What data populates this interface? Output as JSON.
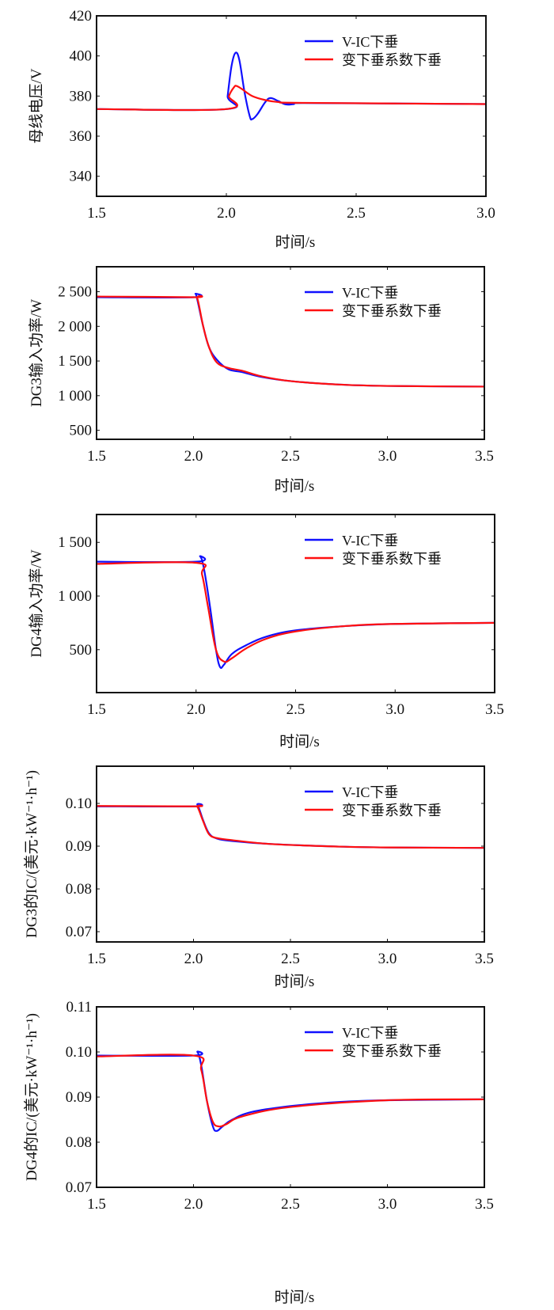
{
  "colors": {
    "vic": "#1010ff",
    "var": "#ff1010"
  },
  "chart_data": [
    {
      "type": "line",
      "ylabel": "母线电压/V",
      "xlabel": "时间/s",
      "xlim": [
        1.5,
        3.0
      ],
      "ylim": [
        330,
        420
      ],
      "xticks": [
        1.5,
        2.0,
        2.5,
        3.0
      ],
      "xtick_labels": [
        "1.5",
        "2.0",
        "2.5",
        "3.0"
      ],
      "yticks": [
        340,
        360,
        380,
        400,
        420
      ],
      "ytick_labels": [
        "340",
        "360",
        "380",
        "400",
        "420"
      ],
      "legend": "top-right",
      "series": [
        {
          "name": "V-IC下垂",
          "color": "#1010ff",
          "x": [
            1.5,
            2.0,
            2.005,
            2.02,
            2.035,
            2.05,
            2.07,
            2.09,
            2.1,
            2.12,
            2.15,
            2.17,
            2.2,
            2.23,
            2.26,
            2.3,
            3.0
          ],
          "y": [
            373.5,
            373.5,
            380,
            395,
            401.5,
            398,
            382,
            370,
            368.5,
            371,
            377,
            379,
            377.5,
            375.8,
            376,
            376.5,
            376
          ]
        },
        {
          "name": "变下垂系数下垂",
          "color": "#ff1010",
          "x": [
            1.5,
            2.0,
            2.01,
            2.03,
            2.04,
            2.06,
            2.1,
            2.15,
            2.2,
            2.3,
            3.0
          ],
          "y": [
            373.5,
            373.5,
            380,
            384.5,
            385,
            383.5,
            380,
            378,
            377,
            376.6,
            376
          ]
        }
      ]
    },
    {
      "type": "line",
      "ylabel": "DG3输入功率/W",
      "xlabel": "时间/s",
      "xlim": [
        1.5,
        3.5
      ],
      "ylim": [
        370,
        2860
      ],
      "xticks": [
        1.5,
        2.0,
        2.5,
        3.0,
        3.5
      ],
      "xtick_labels": [
        "1.5",
        "2.0",
        "2.5",
        "3.0",
        "3.5"
      ],
      "yticks": [
        500,
        1000,
        1500,
        2000,
        2500
      ],
      "ytick_labels": [
        "500",
        "1 000",
        "1 500",
        "2 000",
        "2 500"
      ],
      "legend": "top-right",
      "series": [
        {
          "name": "V-IC下垂",
          "color": "#1010ff",
          "x": [
            1.5,
            2.0,
            2.01,
            2.02,
            2.05,
            2.08,
            2.12,
            2.18,
            2.25,
            2.35,
            2.5,
            2.75,
            3.0,
            3.5
          ],
          "y": [
            2420,
            2420,
            2470,
            2380,
            2000,
            1700,
            1520,
            1380,
            1340,
            1270,
            1210,
            1160,
            1140,
            1130
          ]
        },
        {
          "name": "变下垂系数下垂",
          "color": "#ff1010",
          "x": [
            1.5,
            2.0,
            2.02,
            2.05,
            2.08,
            2.12,
            2.18,
            2.25,
            2.35,
            2.5,
            2.75,
            3.0,
            3.5
          ],
          "y": [
            2430,
            2420,
            2400,
            2000,
            1700,
            1480,
            1400,
            1360,
            1280,
            1210,
            1160,
            1140,
            1130
          ]
        }
      ]
    },
    {
      "type": "line",
      "ylabel": "DG4输入功率/W",
      "xlabel": "时间/s",
      "xlim": [
        1.5,
        3.5
      ],
      "ylim": [
        100,
        1760
      ],
      "xticks": [
        1.5,
        2.0,
        2.5,
        3.0,
        3.5
      ],
      "xtick_labels": [
        "1.5",
        "2.0",
        "2.5",
        "3.0",
        "3.5"
      ],
      "yticks": [
        500,
        1000,
        1500
      ],
      "ytick_labels": [
        "500",
        "1 000",
        "1 500"
      ],
      "legend": "top-right",
      "series": [
        {
          "name": "V-IC下垂",
          "color": "#1010ff",
          "x": [
            1.5,
            2.0,
            2.02,
            2.04,
            2.07,
            2.1,
            2.12,
            2.14,
            2.18,
            2.25,
            2.35,
            2.5,
            2.75,
            3.0,
            3.5
          ],
          "y": [
            1320,
            1320,
            1370,
            1250,
            900,
            500,
            340,
            360,
            460,
            540,
            620,
            680,
            720,
            740,
            750
          ]
        },
        {
          "name": "变下垂系数下垂",
          "color": "#ff1010",
          "x": [
            1.5,
            2.0,
            2.03,
            2.06,
            2.1,
            2.14,
            2.18,
            2.25,
            2.35,
            2.5,
            2.75,
            3.0,
            3.5
          ],
          "y": [
            1300,
            1310,
            1200,
            900,
            500,
            390,
            420,
            510,
            600,
            670,
            720,
            740,
            750
          ]
        }
      ]
    },
    {
      "type": "line",
      "ylabel": "DG3的IC/(美元·kW⁻¹·h⁻¹)",
      "xlabel": "时间/s",
      "xlim": [
        1.5,
        3.5
      ],
      "ylim": [
        0.0676,
        0.1087
      ],
      "xticks": [
        1.5,
        2.0,
        2.5,
        3.0,
        3.5
      ],
      "xtick_labels": [
        "1.5",
        "2.0",
        "2.5",
        "3.0",
        "3.5"
      ],
      "yticks": [
        0.07,
        0.08,
        0.09,
        0.1
      ],
      "ytick_labels": [
        "0.07",
        "0.08",
        "0.09",
        "0.10"
      ],
      "legend": "top-right",
      "series": [
        {
          "name": "V-IC下垂",
          "color": "#1010ff",
          "x": [
            1.5,
            2.0,
            2.02,
            2.05,
            2.08,
            2.12,
            2.2,
            2.4,
            2.75,
            3.0,
            3.5
          ],
          "y": [
            0.0993,
            0.0993,
            0.0997,
            0.096,
            0.093,
            0.0918,
            0.0912,
            0.0905,
            0.0899,
            0.0897,
            0.0896
          ]
        },
        {
          "name": "变下垂系数下垂",
          "color": "#ff1010",
          "x": [
            1.5,
            2.0,
            2.02,
            2.05,
            2.08,
            2.12,
            2.2,
            2.4,
            2.75,
            3.0,
            3.5
          ],
          "y": [
            0.0994,
            0.0993,
            0.0992,
            0.0958,
            0.0928,
            0.0919,
            0.0914,
            0.0905,
            0.0899,
            0.0897,
            0.0896
          ]
        }
      ]
    },
    {
      "type": "line",
      "ylabel": "DG4的IC/(美元·kW⁻¹·h⁻¹)",
      "xlabel": "时间/s",
      "xlim": [
        1.5,
        3.5
      ],
      "ylim": [
        0.07,
        0.11
      ],
      "xticks": [
        1.5,
        2.0,
        2.5,
        3.0,
        3.5
      ],
      "xtick_labels": [
        "1.5",
        "2.0",
        "2.5",
        "3.0",
        "3.5"
      ],
      "yticks": [
        0.07,
        0.08,
        0.09,
        0.1,
        0.11
      ],
      "ytick_labels": [
        "0.07",
        "0.08",
        "0.09",
        "0.10",
        "0.11"
      ],
      "legend": "top-right",
      "series": [
        {
          "name": "V-IC下垂",
          "color": "#1010ff",
          "x": [
            1.5,
            2.0,
            2.02,
            2.04,
            2.07,
            2.1,
            2.12,
            2.15,
            2.2,
            2.3,
            2.5,
            2.75,
            3.0,
            3.5
          ],
          "y": [
            0.0992,
            0.0992,
            0.1,
            0.097,
            0.089,
            0.0835,
            0.0825,
            0.0835,
            0.085,
            0.0867,
            0.088,
            0.0889,
            0.0893,
            0.0895
          ]
        },
        {
          "name": "变下垂系数下垂",
          "color": "#ff1010",
          "x": [
            1.5,
            2.0,
            2.04,
            2.07,
            2.1,
            2.13,
            2.17,
            2.25,
            2.5,
            3.0,
            3.5
          ],
          "y": [
            0.099,
            0.0992,
            0.096,
            0.089,
            0.0845,
            0.0835,
            0.084,
            0.0857,
            0.0878,
            0.0893,
            0.0895
          ]
        }
      ]
    }
  ]
}
